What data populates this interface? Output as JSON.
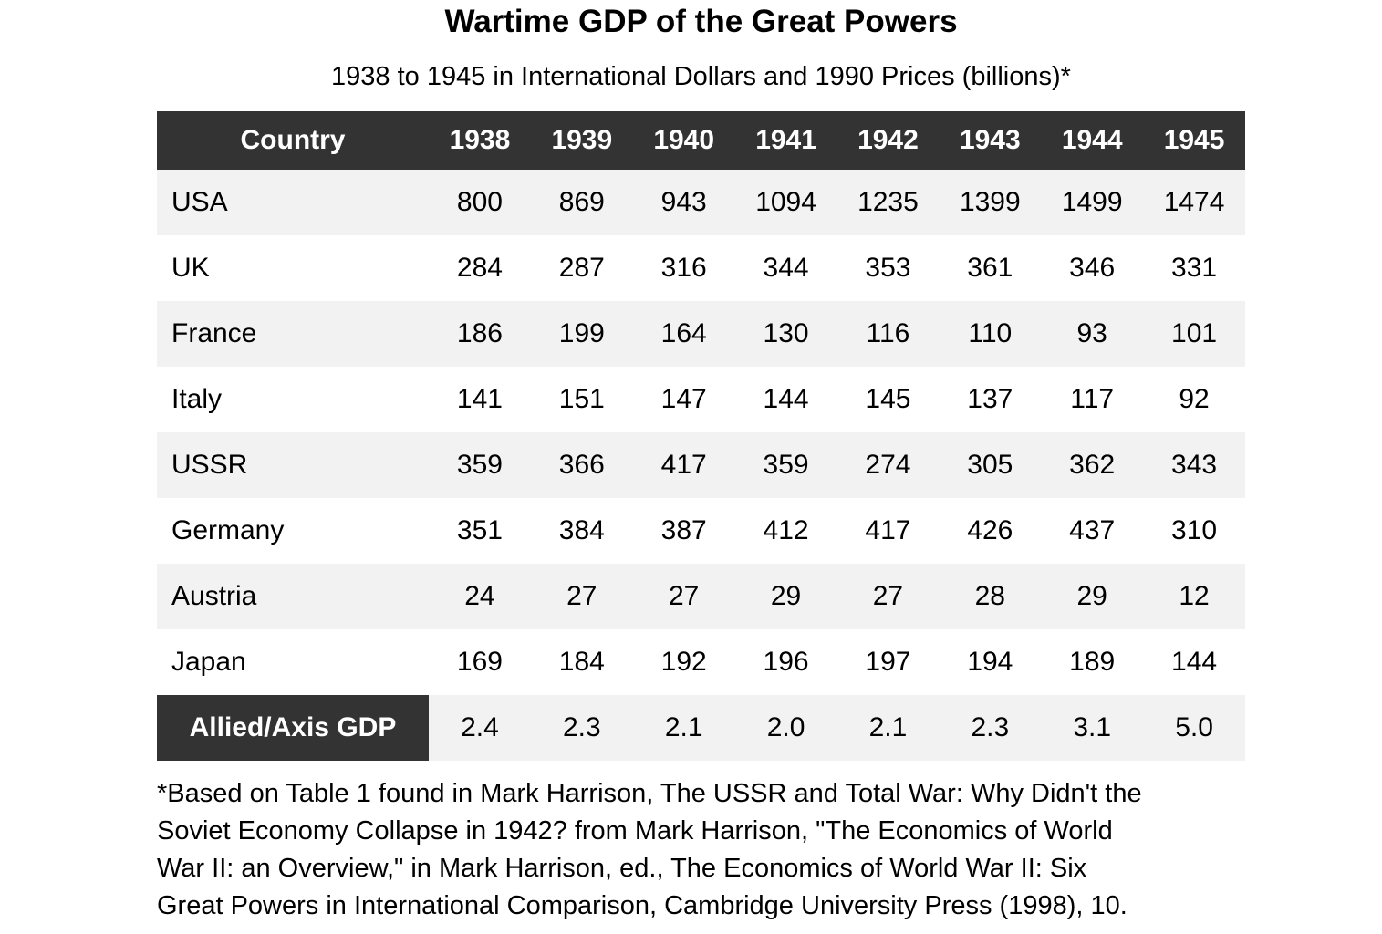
{
  "chart_data": {
    "type": "table",
    "title": "Wartime GDP of the Great Powers",
    "subtitle": "1938 to 1945 in International Dollars and 1990 Prices (billions)*",
    "columns": [
      "Country",
      "1938",
      "1939",
      "1940",
      "1941",
      "1942",
      "1943",
      "1944",
      "1945"
    ],
    "country_rows": [
      {
        "label": "USA",
        "values": [
          800,
          869,
          943,
          1094,
          1235,
          1399,
          1499,
          1474
        ]
      },
      {
        "label": "UK",
        "values": [
          284,
          287,
          316,
          344,
          353,
          361,
          346,
          331
        ]
      },
      {
        "label": "France",
        "values": [
          186,
          199,
          164,
          130,
          116,
          110,
          93,
          101
        ]
      },
      {
        "label": "Italy",
        "values": [
          141,
          151,
          147,
          144,
          145,
          137,
          117,
          92
        ]
      },
      {
        "label": "USSR",
        "values": [
          359,
          366,
          417,
          359,
          274,
          305,
          362,
          343
        ]
      },
      {
        "label": "Germany",
        "values": [
          351,
          384,
          387,
          412,
          417,
          426,
          437,
          310
        ]
      },
      {
        "label": "Austria",
        "values": [
          24,
          27,
          27,
          29,
          27,
          28,
          29,
          12
        ]
      },
      {
        "label": "Japan",
        "values": [
          169,
          184,
          192,
          196,
          197,
          194,
          189,
          144
        ]
      }
    ],
    "ratio_row": {
      "label": "Allied/Axis GDP",
      "values": [
        "2.4",
        "2.3",
        "2.1",
        "2.0",
        "2.1",
        "2.3",
        "3.1",
        "5.0"
      ]
    },
    "footnote_lines": [
      "*Based on Table 1 found in Mark Harrison, The USSR and Total War: Why Didn't the",
      "Soviet Economy Collapse in 1942? from Mark Harrison, \"The Economics of World",
      "War II: an Overview,\" in Mark Harrison, ed., The Economics of World War II: Six",
      "Great Powers in International Comparison, Cambridge University Press (1998), 10."
    ],
    "layout": {
      "legend": "none",
      "grid": "off",
      "stripe_style": "alternating-rows"
    },
    "colors": {
      "header_bg": "#333333",
      "header_text": "#ffffff",
      "stripe_row_bg": "#f2f2f2",
      "plain_row_bg": "#ffffff",
      "body_text": "#000000"
    }
  }
}
